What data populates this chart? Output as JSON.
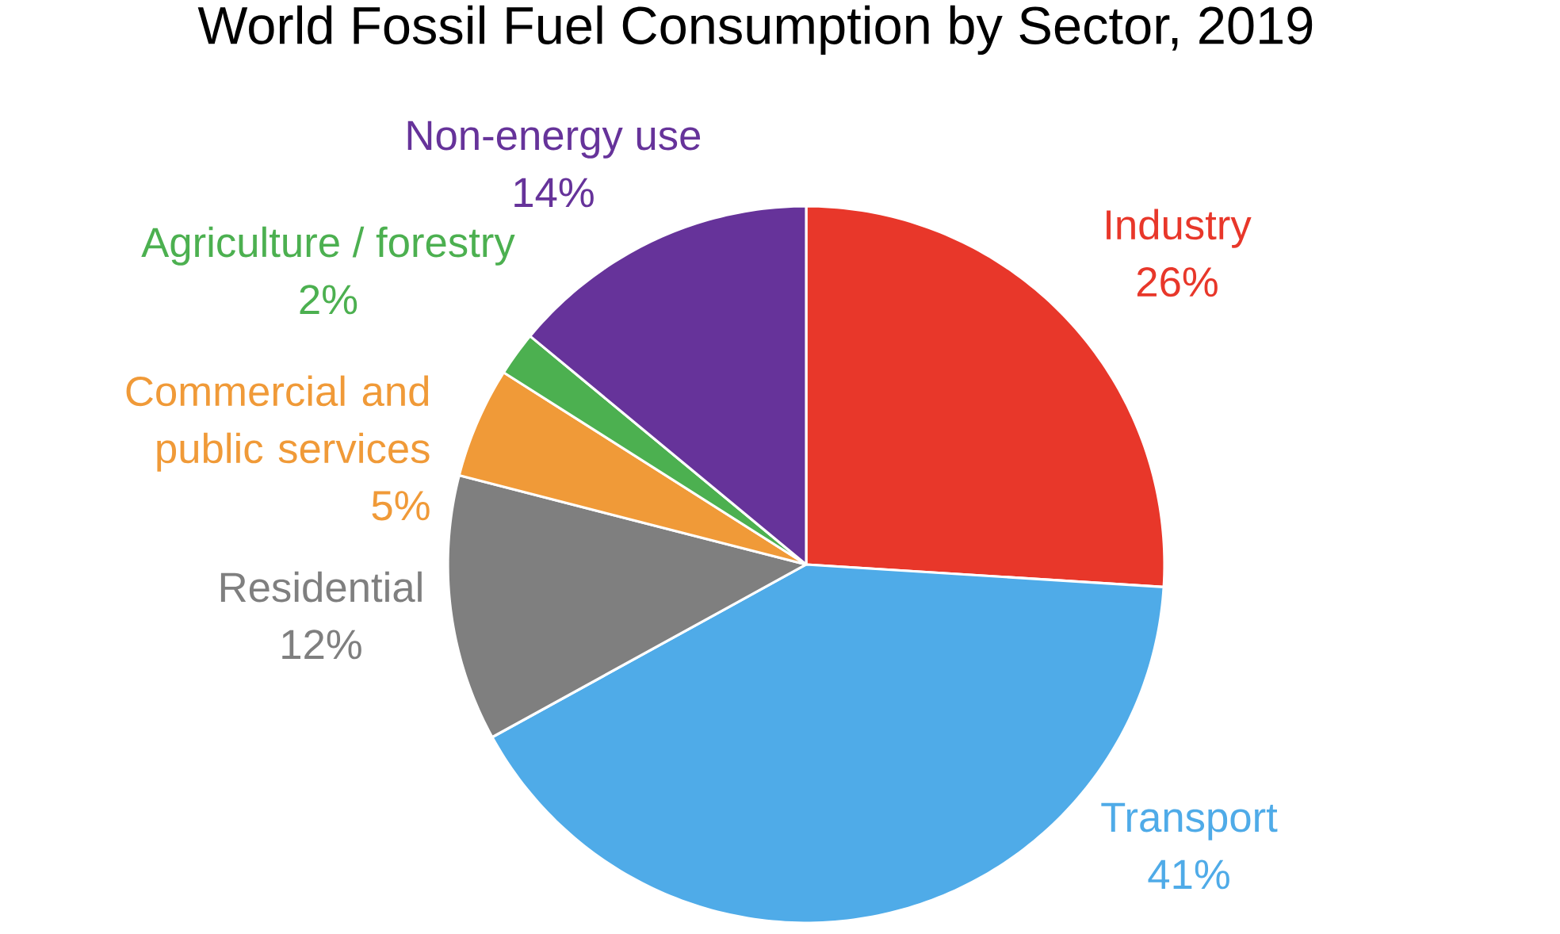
{
  "chart_data": {
    "type": "pie",
    "title": "World Fossil Fuel Consumption by Sector, 2019",
    "categories": [
      "Industry",
      "Transport",
      "Residential",
      "Commercial and public services",
      "Agriculture / forestry",
      "Non-energy use"
    ],
    "values": [
      26,
      41,
      12,
      5,
      2,
      14
    ],
    "value_labels": [
      "26%",
      "41%",
      "12%",
      "5%",
      "2%",
      "14%"
    ],
    "colors": [
      "#e8372a",
      "#4fabe8",
      "#7f7f7f",
      "#f09a38",
      "#4cb050",
      "#66339a"
    ]
  }
}
